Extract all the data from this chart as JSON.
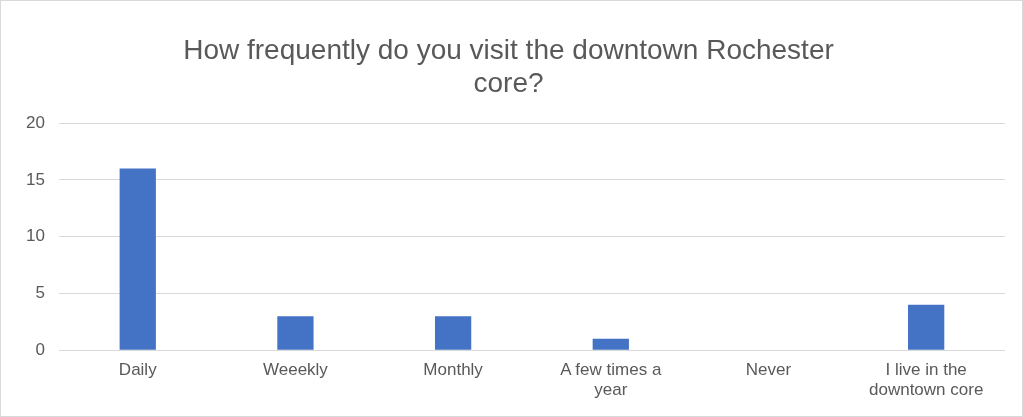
{
  "chart_data": {
    "type": "bar",
    "title": "How frequently do you visit the downtown Rochester core?",
    "categories": [
      "Daily",
      "Weeekly",
      "Monthly",
      "A few times a year",
      "Never",
      "I live in the downtown core"
    ],
    "values": [
      16,
      3,
      3,
      1,
      0,
      4
    ],
    "color": "#4472c4",
    "ylim": [
      0,
      20
    ],
    "yticks": [
      0,
      5,
      10,
      15,
      20
    ],
    "grid": "y",
    "legend": false
  }
}
